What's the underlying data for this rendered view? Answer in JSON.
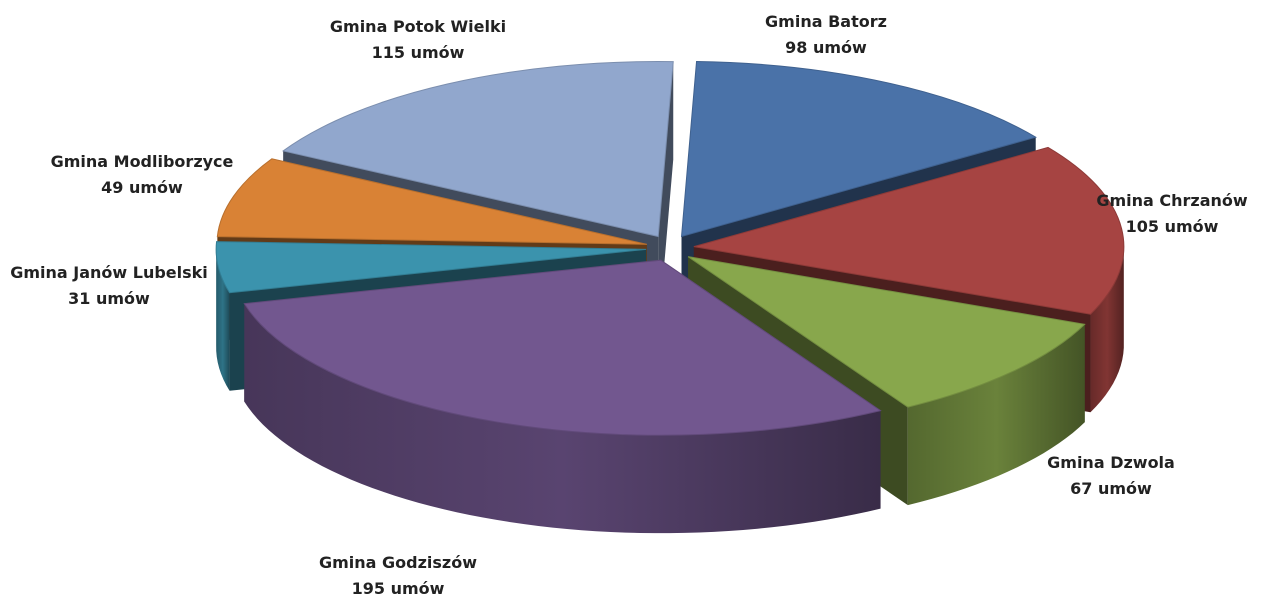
{
  "chart_data": {
    "type": "pie",
    "title": "",
    "style": "3d-exploded",
    "unit": "umów",
    "slices": [
      {
        "name": "Gmina Batorz",
        "value": 98,
        "value_label": "98 umów",
        "color": "#4a72a8"
      },
      {
        "name": "Gmina Chrzanów",
        "value": 105,
        "value_label": "105 umów",
        "color": "#a64442"
      },
      {
        "name": "Gmina Dzwola",
        "value": 67,
        "value_label": "67 umów",
        "color": "#88a74c"
      },
      {
        "name": "Gmina Godziszów",
        "value": 195,
        "value_label": "195 umów",
        "color": "#72578f"
      },
      {
        "name": "Gmina Janów Lubelski",
        "value": 31,
        "value_label": "31 umów",
        "color": "#3b93ad"
      },
      {
        "name": "Gmina Modliborzyce",
        "value": 49,
        "value_label": "49 umów",
        "color": "#d98235"
      },
      {
        "name": "Gmina Potok Wielki",
        "value": 115,
        "value_label": "115 umów",
        "color": "#91a7cd"
      }
    ]
  }
}
